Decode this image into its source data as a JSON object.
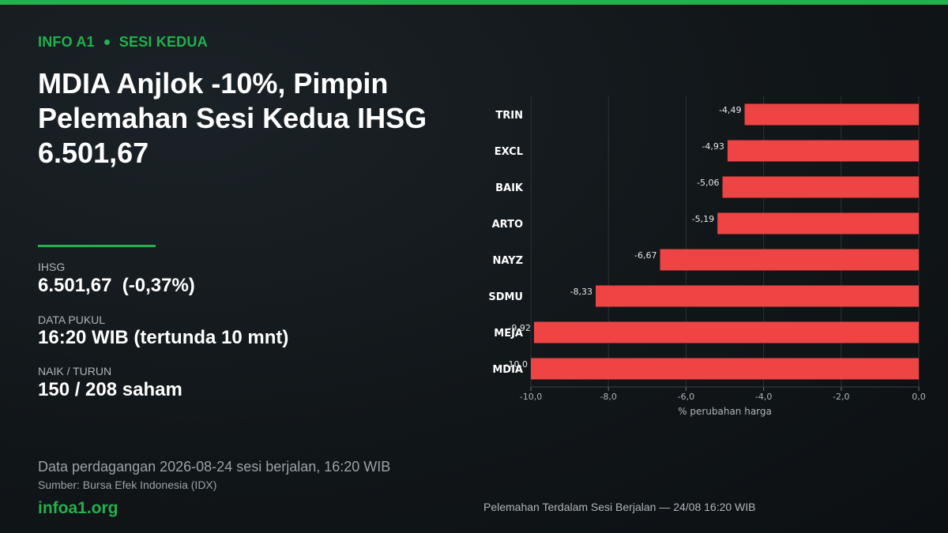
{
  "header": {
    "kicker_left": "INFO A1",
    "kicker_right": "SESI KEDUA",
    "headline": "MDIA Anjlok -10%, Pimpin Pelemahan Sesi Kedua IHSG 6.501,67"
  },
  "stats": [
    {
      "label": "IHSG",
      "value": "6.501,67  (-0,37%)"
    },
    {
      "label": "DATA PUKUL",
      "value": "16:20 WIB (tertunda 10 mnt)"
    },
    {
      "label": "NAIK / TURUN",
      "value": "150 / 208 saham"
    }
  ],
  "footer": {
    "note": "Data perdagangan 2026-08-24 sesi berjalan, 16:20 WIB",
    "source": "Sumber: Bursa Efek Indonesia (IDX)",
    "brand": "infoa1.org",
    "chart_caption": "Pelemahan Terdalam Sesi Berjalan — 24/08 16:20 WIB"
  },
  "colors": {
    "accent": "#22b14c",
    "bar": "#ef4444",
    "background": "#111619"
  },
  "chart_data": {
    "type": "bar",
    "orientation": "horizontal",
    "categories": [
      "TRIN",
      "EXCL",
      "BAIK",
      "ARTO",
      "NAYZ",
      "SDMU",
      "MEJA",
      "MDIA"
    ],
    "values": [
      -4.49,
      -4.93,
      -5.06,
      -5.19,
      -6.67,
      -8.33,
      -9.92,
      -10.0
    ],
    "value_labels": [
      "-4,49",
      "-4,93",
      "-5,06",
      "-5,19",
      "-6,67",
      "-8,33",
      "-9,92",
      "-10,0"
    ],
    "xlabel": "% perubahan harga",
    "xlim": [
      -10,
      0
    ],
    "xticks": [
      -10,
      -8,
      -6,
      -4,
      -2,
      0
    ],
    "xtick_labels": [
      "-10,0",
      "-8,0",
      "-6,0",
      "-4,0",
      "-2,0",
      "0,0"
    ],
    "grid": true
  }
}
